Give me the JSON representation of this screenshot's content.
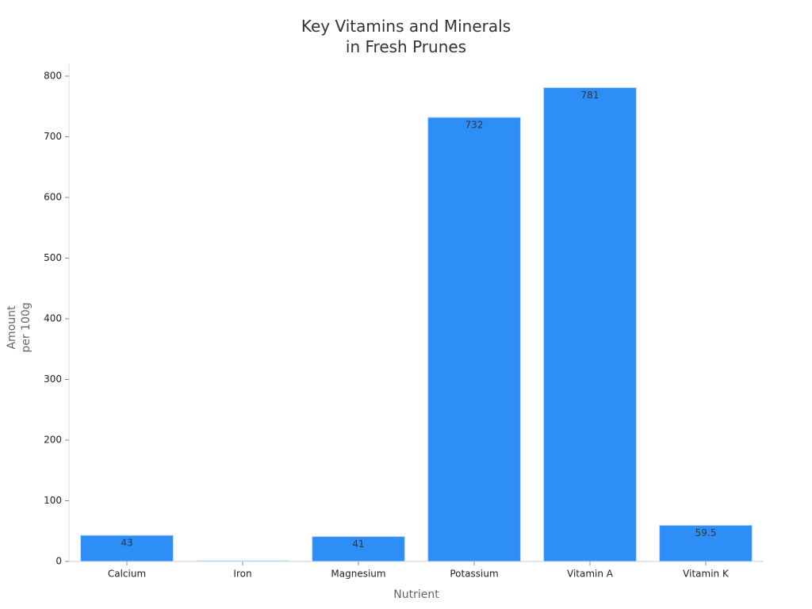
{
  "chart_data": {
    "type": "bar",
    "title": "Key Vitamins and Minerals\nin Fresh Prunes",
    "x_label": "Nutrient",
    "y_label": "Amount\nper 100g",
    "categories": [
      "Calcium",
      "Iron",
      "Magnesium",
      "Potassium",
      "Vitamin A",
      "Vitamin K"
    ],
    "values": [
      43,
      1,
      41,
      732,
      781,
      59.5
    ],
    "value_labels": [
      "43",
      null,
      "41",
      "732",
      "781",
      "59.5"
    ],
    "color": "#2e8ef7",
    "ylim": [
      0,
      820
    ],
    "yticks": [
      0,
      100,
      200,
      300,
      400,
      500,
      600,
      700,
      800
    ],
    "grid": false
  }
}
